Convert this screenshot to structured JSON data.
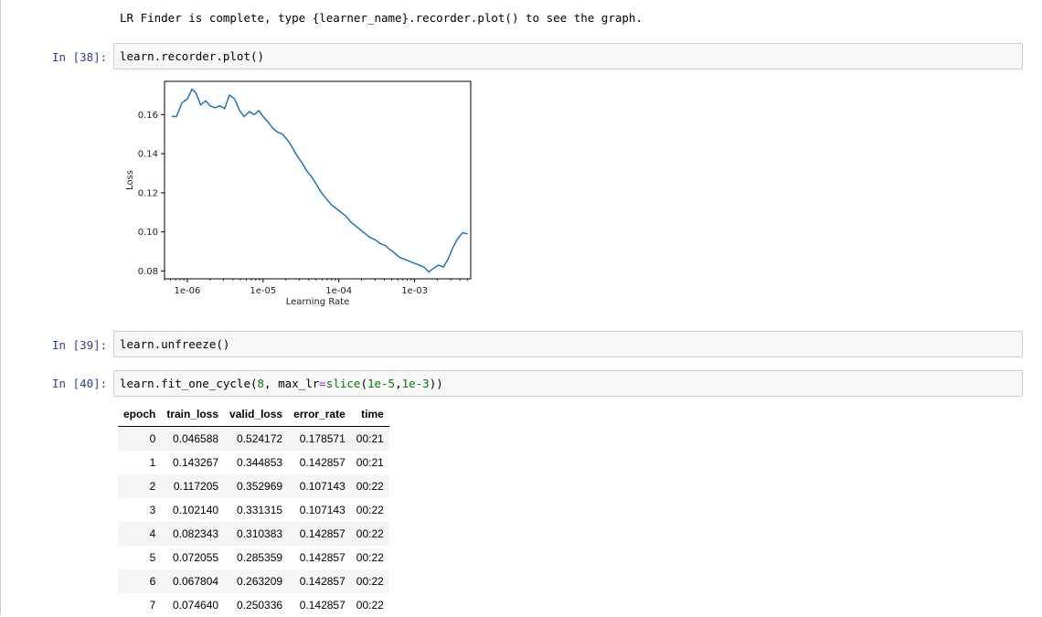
{
  "output_message": "LR Finder is complete, type {learner_name}.recorder.plot() to see the graph.",
  "cells": [
    {
      "prompt": "In [38]:",
      "code": "learn.recorder.plot()"
    },
    {
      "prompt": "In [39]:",
      "code": "learn.unfreeze()"
    },
    {
      "prompt": "In [40]:",
      "code_parts": {
        "pre": "learn.fit_one_cycle(",
        "arg1": "8",
        "mid": ", max_lr",
        "eq": "=",
        "fn": "slice",
        "open": "(",
        "a": "1e-5",
        "comma": ",",
        "b": "1e-3",
        "close": "))"
      }
    }
  ],
  "chart_data": {
    "type": "line",
    "xlabel": "Learning Rate",
    "ylabel": "Loss",
    "xscale": "log",
    "xlim": [
      5e-07,
      0.0055
    ],
    "ylim": [
      0.076,
      0.177
    ],
    "xticks": [
      {
        "v": 1e-06,
        "label": "1e-06"
      },
      {
        "v": 1e-05,
        "label": "1e-05"
      },
      {
        "v": 0.0001,
        "label": "1e-04"
      },
      {
        "v": 0.001,
        "label": "1e-03"
      }
    ],
    "yticks": [
      {
        "v": 0.08,
        "label": "0.08"
      },
      {
        "v": 0.1,
        "label": "0.10"
      },
      {
        "v": 0.12,
        "label": "0.12"
      },
      {
        "v": 0.14,
        "label": "0.14"
      },
      {
        "v": 0.16,
        "label": "0.16"
      }
    ],
    "color": "#1f77b4",
    "x": [
      6.2e-07,
      7.2e-07,
      8.5e-07,
      1e-06,
      1.15e-06,
      1.3e-06,
      1.5e-06,
      1.75e-06,
      2e-06,
      2.3e-06,
      2.7e-06,
      3.1e-06,
      3.6e-06,
      4.2e-06,
      4.9e-06,
      5.6e-06,
      6.6e-06,
      7.6e-06,
      8.8e-06,
      1e-05,
      1.17e-05,
      1.35e-05,
      1.55e-05,
      1.8e-05,
      2.1e-05,
      2.45e-05,
      2.8e-05,
      3.3e-05,
      3.8e-05,
      4.4e-05,
      5.1e-05,
      5.9e-05,
      6.8e-05,
      7.9e-05,
      9.2e-05,
      0.000107,
      0.000124,
      0.000144,
      0.000167,
      0.000193,
      0.000224,
      0.00026,
      0.0003,
      0.00035,
      0.00041,
      0.00047,
      0.00055,
      0.00063,
      0.00073,
      0.00085,
      0.00099,
      0.00115,
      0.00133,
      0.00154,
      0.00179,
      0.00207,
      0.0024,
      0.0028,
      0.0032,
      0.0037,
      0.0043,
      0.005
    ],
    "y": [
      0.159,
      0.159,
      0.166,
      0.168,
      0.173,
      0.171,
      0.165,
      0.167,
      0.1645,
      0.1635,
      0.1645,
      0.163,
      0.17,
      0.168,
      0.162,
      0.159,
      0.1615,
      0.16,
      0.162,
      0.159,
      0.156,
      0.153,
      0.151,
      0.15,
      0.147,
      0.143,
      0.139,
      0.135,
      0.131,
      0.128,
      0.124,
      0.12,
      0.117,
      0.114,
      0.112,
      0.11,
      0.108,
      0.105,
      0.103,
      0.101,
      0.099,
      0.097,
      0.096,
      0.094,
      0.093,
      0.091,
      0.089,
      0.087,
      0.086,
      0.085,
      0.084,
      0.083,
      0.082,
      0.0795,
      0.0815,
      0.083,
      0.082,
      0.0865,
      0.092,
      0.0965,
      0.0995,
      0.099
    ]
  },
  "results_table": {
    "headers": [
      "epoch",
      "train_loss",
      "valid_loss",
      "error_rate",
      "time"
    ],
    "rows": [
      [
        "0",
        "0.046588",
        "0.524172",
        "0.178571",
        "00:21"
      ],
      [
        "1",
        "0.143267",
        "0.344853",
        "0.142857",
        "00:21"
      ],
      [
        "2",
        "0.117205",
        "0.352969",
        "0.107143",
        "00:22"
      ],
      [
        "3",
        "0.102140",
        "0.331315",
        "0.107143",
        "00:22"
      ],
      [
        "4",
        "0.082343",
        "0.310383",
        "0.142857",
        "00:22"
      ],
      [
        "5",
        "0.072055",
        "0.285359",
        "0.142857",
        "00:22"
      ],
      [
        "6",
        "0.067804",
        "0.263209",
        "0.142857",
        "00:22"
      ],
      [
        "7",
        "0.074640",
        "0.250336",
        "0.142857",
        "00:22"
      ]
    ]
  }
}
